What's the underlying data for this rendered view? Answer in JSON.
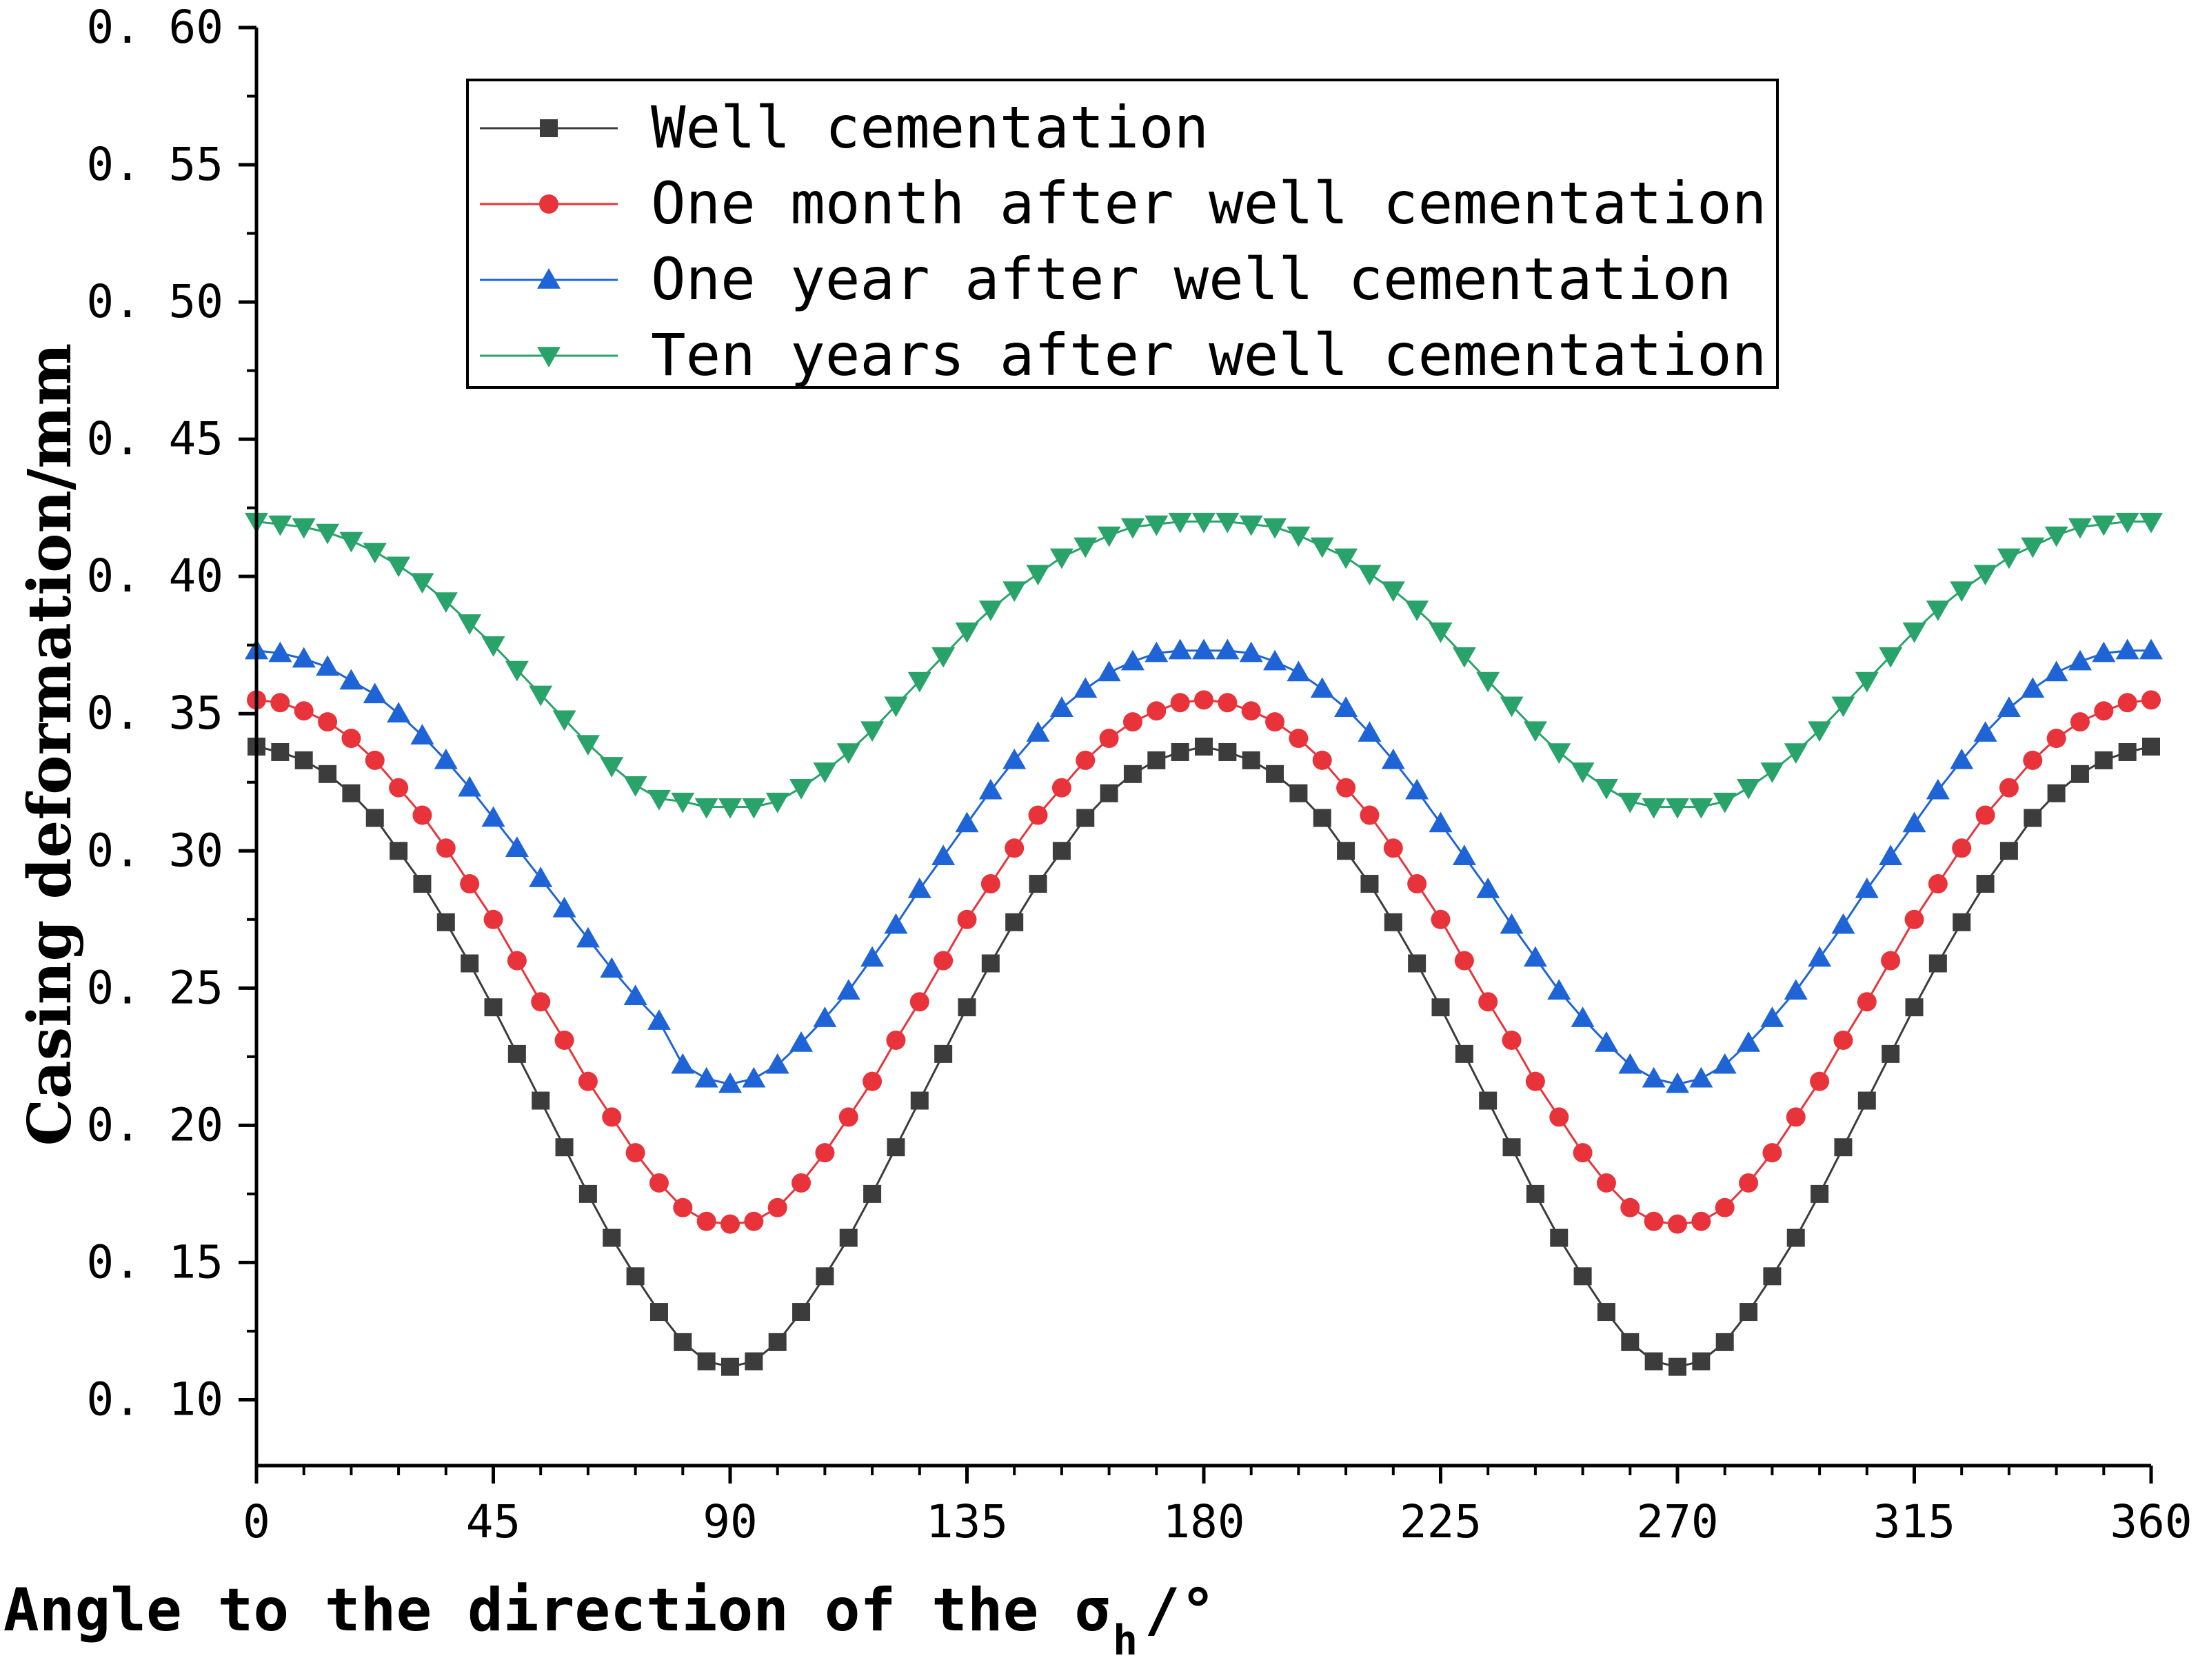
{
  "chart_data": {
    "type": "line",
    "title": "",
    "xlabel": "Angle to the direction of the σ",
    "xlabel_subscript": "h",
    "xlabel_suffix": "/°",
    "ylabel": "Casing deformation/mm",
    "xlim": [
      0,
      360
    ],
    "ylim": [
      0.076,
      0.6
    ],
    "x_ticks": [
      0,
      45,
      90,
      135,
      180,
      225,
      270,
      315,
      360
    ],
    "x_tick_labels": [
      "0",
      "45",
      "90",
      "135",
      "180",
      "225",
      "270",
      "315",
      "360"
    ],
    "y_ticks": [
      0.1,
      0.15,
      0.2,
      0.25,
      0.3,
      0.35,
      0.4,
      0.45,
      0.5,
      0.55,
      0.6
    ],
    "y_tick_labels": [
      "0. 10",
      "0. 15",
      "0. 20",
      "0. 25",
      "0. 30",
      "0. 35",
      "0. 40",
      "0. 45",
      "0. 50",
      "0. 55",
      "0. 60"
    ],
    "grid": false,
    "legend_position": "top-center",
    "x": [
      0,
      4.5,
      9,
      13.5,
      18,
      22.5,
      27,
      31.5,
      36,
      40.5,
      45,
      49.5,
      54,
      58.5,
      63,
      67.5,
      72,
      76.5,
      81,
      85.5,
      90,
      94.5,
      99,
      103.5,
      108,
      112.5,
      117,
      121.5,
      126,
      130.5,
      135,
      139.5,
      144,
      148.5,
      153,
      157.5,
      162,
      166.5,
      171,
      175.5,
      180,
      184.5,
      189,
      193.5,
      198,
      202.5,
      207,
      211.5,
      216,
      220.5,
      225,
      229.5,
      234,
      238.5,
      243,
      247.5,
      252,
      256.5,
      261,
      265.5,
      270,
      274.5,
      279,
      283.5,
      288,
      292.5,
      297,
      301.5,
      306,
      310.5,
      315,
      319.5,
      324,
      328.5,
      333,
      337.5,
      342,
      346.5,
      351,
      355.5,
      360
    ],
    "series": [
      {
        "name": "Well cementation",
        "color": "#3c3c3c",
        "marker": "square",
        "values": [
          0.338,
          0.336,
          0.333,
          0.328,
          0.321,
          0.312,
          0.3,
          0.288,
          0.274,
          0.259,
          0.243,
          0.226,
          0.209,
          0.192,
          0.175,
          0.159,
          0.145,
          0.132,
          0.121,
          0.114,
          0.112,
          0.114,
          0.121,
          0.132,
          0.145,
          0.159,
          0.175,
          0.192,
          0.209,
          0.226,
          0.243,
          0.259,
          0.274,
          0.288,
          0.3,
          0.312,
          0.321,
          0.328,
          0.333,
          0.336,
          0.338,
          0.336,
          0.333,
          0.328,
          0.321,
          0.312,
          0.3,
          0.288,
          0.274,
          0.259,
          0.243,
          0.226,
          0.209,
          0.192,
          0.175,
          0.159,
          0.145,
          0.132,
          0.121,
          0.114,
          0.112,
          0.114,
          0.121,
          0.132,
          0.145,
          0.159,
          0.175,
          0.192,
          0.209,
          0.226,
          0.243,
          0.259,
          0.274,
          0.288,
          0.3,
          0.312,
          0.321,
          0.328,
          0.333,
          0.336,
          0.338
        ]
      },
      {
        "name": "One month after well cementation",
        "color": "#e8333a",
        "marker": "circle",
        "values": [
          0.355,
          0.354,
          0.351,
          0.347,
          0.341,
          0.333,
          0.323,
          0.313,
          0.301,
          0.288,
          0.275,
          0.26,
          0.245,
          0.231,
          0.216,
          0.203,
          0.19,
          0.179,
          0.17,
          0.165,
          0.164,
          0.165,
          0.17,
          0.179,
          0.19,
          0.203,
          0.216,
          0.231,
          0.245,
          0.26,
          0.275,
          0.288,
          0.301,
          0.313,
          0.323,
          0.333,
          0.341,
          0.347,
          0.351,
          0.354,
          0.355,
          0.354,
          0.351,
          0.347,
          0.341,
          0.333,
          0.323,
          0.313,
          0.301,
          0.288,
          0.275,
          0.26,
          0.245,
          0.231,
          0.216,
          0.203,
          0.19,
          0.179,
          0.17,
          0.165,
          0.164,
          0.165,
          0.17,
          0.179,
          0.19,
          0.203,
          0.216,
          0.231,
          0.245,
          0.26,
          0.275,
          0.288,
          0.301,
          0.313,
          0.323,
          0.333,
          0.341,
          0.347,
          0.351,
          0.354,
          0.355
        ]
      },
      {
        "name": "One year after well cementation",
        "color": "#1f64d6",
        "marker": "triangle-up",
        "values": [
          0.373,
          0.372,
          0.37,
          0.367,
          0.362,
          0.357,
          0.35,
          0.342,
          0.333,
          0.323,
          0.312,
          0.301,
          0.29,
          0.279,
          0.268,
          0.257,
          0.247,
          0.238,
          0.222,
          0.217,
          0.215,
          0.217,
          0.222,
          0.23,
          0.239,
          0.249,
          0.261,
          0.273,
          0.286,
          0.298,
          0.31,
          0.322,
          0.333,
          0.343,
          0.352,
          0.359,
          0.365,
          0.369,
          0.372,
          0.373,
          0.373,
          0.373,
          0.372,
          0.369,
          0.365,
          0.359,
          0.352,
          0.343,
          0.333,
          0.322,
          0.31,
          0.298,
          0.286,
          0.273,
          0.261,
          0.249,
          0.239,
          0.23,
          0.222,
          0.217,
          0.215,
          0.217,
          0.222,
          0.23,
          0.239,
          0.249,
          0.261,
          0.273,
          0.286,
          0.298,
          0.31,
          0.322,
          0.333,
          0.343,
          0.352,
          0.359,
          0.365,
          0.369,
          0.372,
          0.373,
          0.373
        ]
      },
      {
        "name": "Ten years after well cementation",
        "color": "#2aa36a",
        "marker": "triangle-down",
        "values": [
          0.42,
          0.419,
          0.418,
          0.416,
          0.413,
          0.409,
          0.404,
          0.398,
          0.391,
          0.383,
          0.375,
          0.366,
          0.357,
          0.348,
          0.339,
          0.331,
          0.324,
          0.319,
          0.318,
          0.316,
          0.316,
          0.316,
          0.318,
          0.323,
          0.329,
          0.336,
          0.344,
          0.353,
          0.362,
          0.371,
          0.38,
          0.388,
          0.395,
          0.401,
          0.407,
          0.411,
          0.415,
          0.418,
          0.419,
          0.42,
          0.42,
          0.42,
          0.419,
          0.418,
          0.415,
          0.411,
          0.407,
          0.401,
          0.395,
          0.388,
          0.38,
          0.371,
          0.362,
          0.353,
          0.344,
          0.336,
          0.329,
          0.323,
          0.318,
          0.316,
          0.316,
          0.316,
          0.318,
          0.323,
          0.329,
          0.336,
          0.344,
          0.353,
          0.362,
          0.371,
          0.38,
          0.388,
          0.395,
          0.401,
          0.407,
          0.411,
          0.415,
          0.418,
          0.419,
          0.42,
          0.42
        ]
      }
    ]
  }
}
